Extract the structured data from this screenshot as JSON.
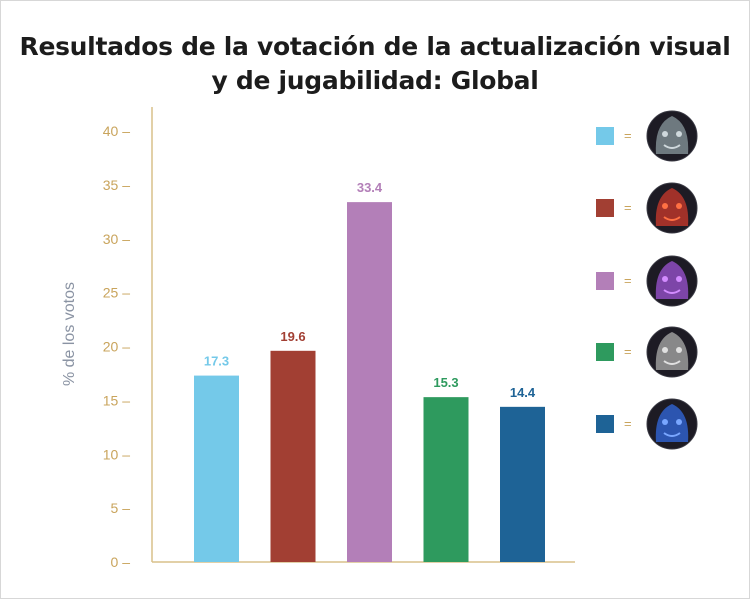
{
  "title_line1": "Resultados de la votación de la actualización visual",
  "title_line2": "y de jugabilidad: Global",
  "chart_data": {
    "type": "bar",
    "title": "Resultados de la votación de la actualización visual y de jugabilidad: Global",
    "ylabel": "% de los votos",
    "xlabel": "",
    "ylim": [
      0,
      40
    ],
    "yticks": [
      0,
      5,
      10,
      15,
      20,
      25,
      30,
      35,
      40
    ],
    "tick_suffix": " –",
    "grid": false,
    "legend_position": "right",
    "legend_separator": "=",
    "values": [
      17.3,
      19.6,
      33.4,
      15.3,
      14.4
    ],
    "labels": [
      "17.3",
      "19.6",
      "33.4",
      "15.3",
      "14.4"
    ],
    "colors": [
      "#74c9e9",
      "#a23f33",
      "#b37fb8",
      "#2e9a5e",
      "#1e6396"
    ],
    "label_colors": [
      "#74c9e9",
      "#a23f33",
      "#b37fb8",
      "#2e9a5e",
      "#1e6396"
    ],
    "legend_icons": [
      "helmeted-champion-portrait-icon",
      "red-demon-champion-portrait-icon",
      "purple-beast-champion-portrait-icon",
      "skull-masked-champion-portrait-icon",
      "blue-shadow-champion-portrait-icon"
    ],
    "axis_color": "#d9c08a"
  }
}
